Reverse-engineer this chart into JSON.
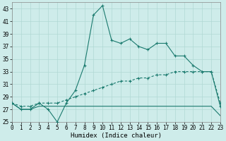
{
  "xlabel": "Humidex (Indice chaleur)",
  "ylabel": "",
  "background_color": "#ceecea",
  "grid_color": "#b0d8d4",
  "line_color": "#1a7a6e",
  "xlim": [
    0,
    23
  ],
  "ylim": [
    25,
    44
  ],
  "yticks": [
    25,
    27,
    29,
    31,
    33,
    35,
    37,
    39,
    41,
    43
  ],
  "xticks": [
    0,
    1,
    2,
    3,
    4,
    5,
    6,
    7,
    8,
    9,
    10,
    11,
    12,
    13,
    14,
    15,
    16,
    17,
    18,
    19,
    20,
    21,
    22,
    23
  ],
  "humidex": [
    28,
    27,
    27,
    28,
    27,
    25,
    28,
    30,
    34,
    42,
    43.5,
    38,
    37.5,
    38.2,
    37,
    36.5,
    37.5,
    37.5,
    35.5,
    35.5,
    34,
    33,
    33,
    27.5
  ],
  "flatline": [
    28,
    27,
    27,
    27.5,
    27.5,
    27.5,
    27.5,
    27.5,
    27.5,
    27.5,
    27.5,
    27.5,
    27.5,
    27.5,
    27.5,
    27.5,
    27.5,
    27.5,
    27.5,
    27.5,
    27.5,
    27.5,
    27.5,
    26
  ],
  "diagline": [
    28,
    27.5,
    27.5,
    28,
    28,
    28,
    28.5,
    29,
    29.5,
    30,
    30.5,
    31,
    31.5,
    31.5,
    32,
    32,
    32.5,
    32.5,
    33,
    33,
    33,
    33,
    33,
    28
  ]
}
